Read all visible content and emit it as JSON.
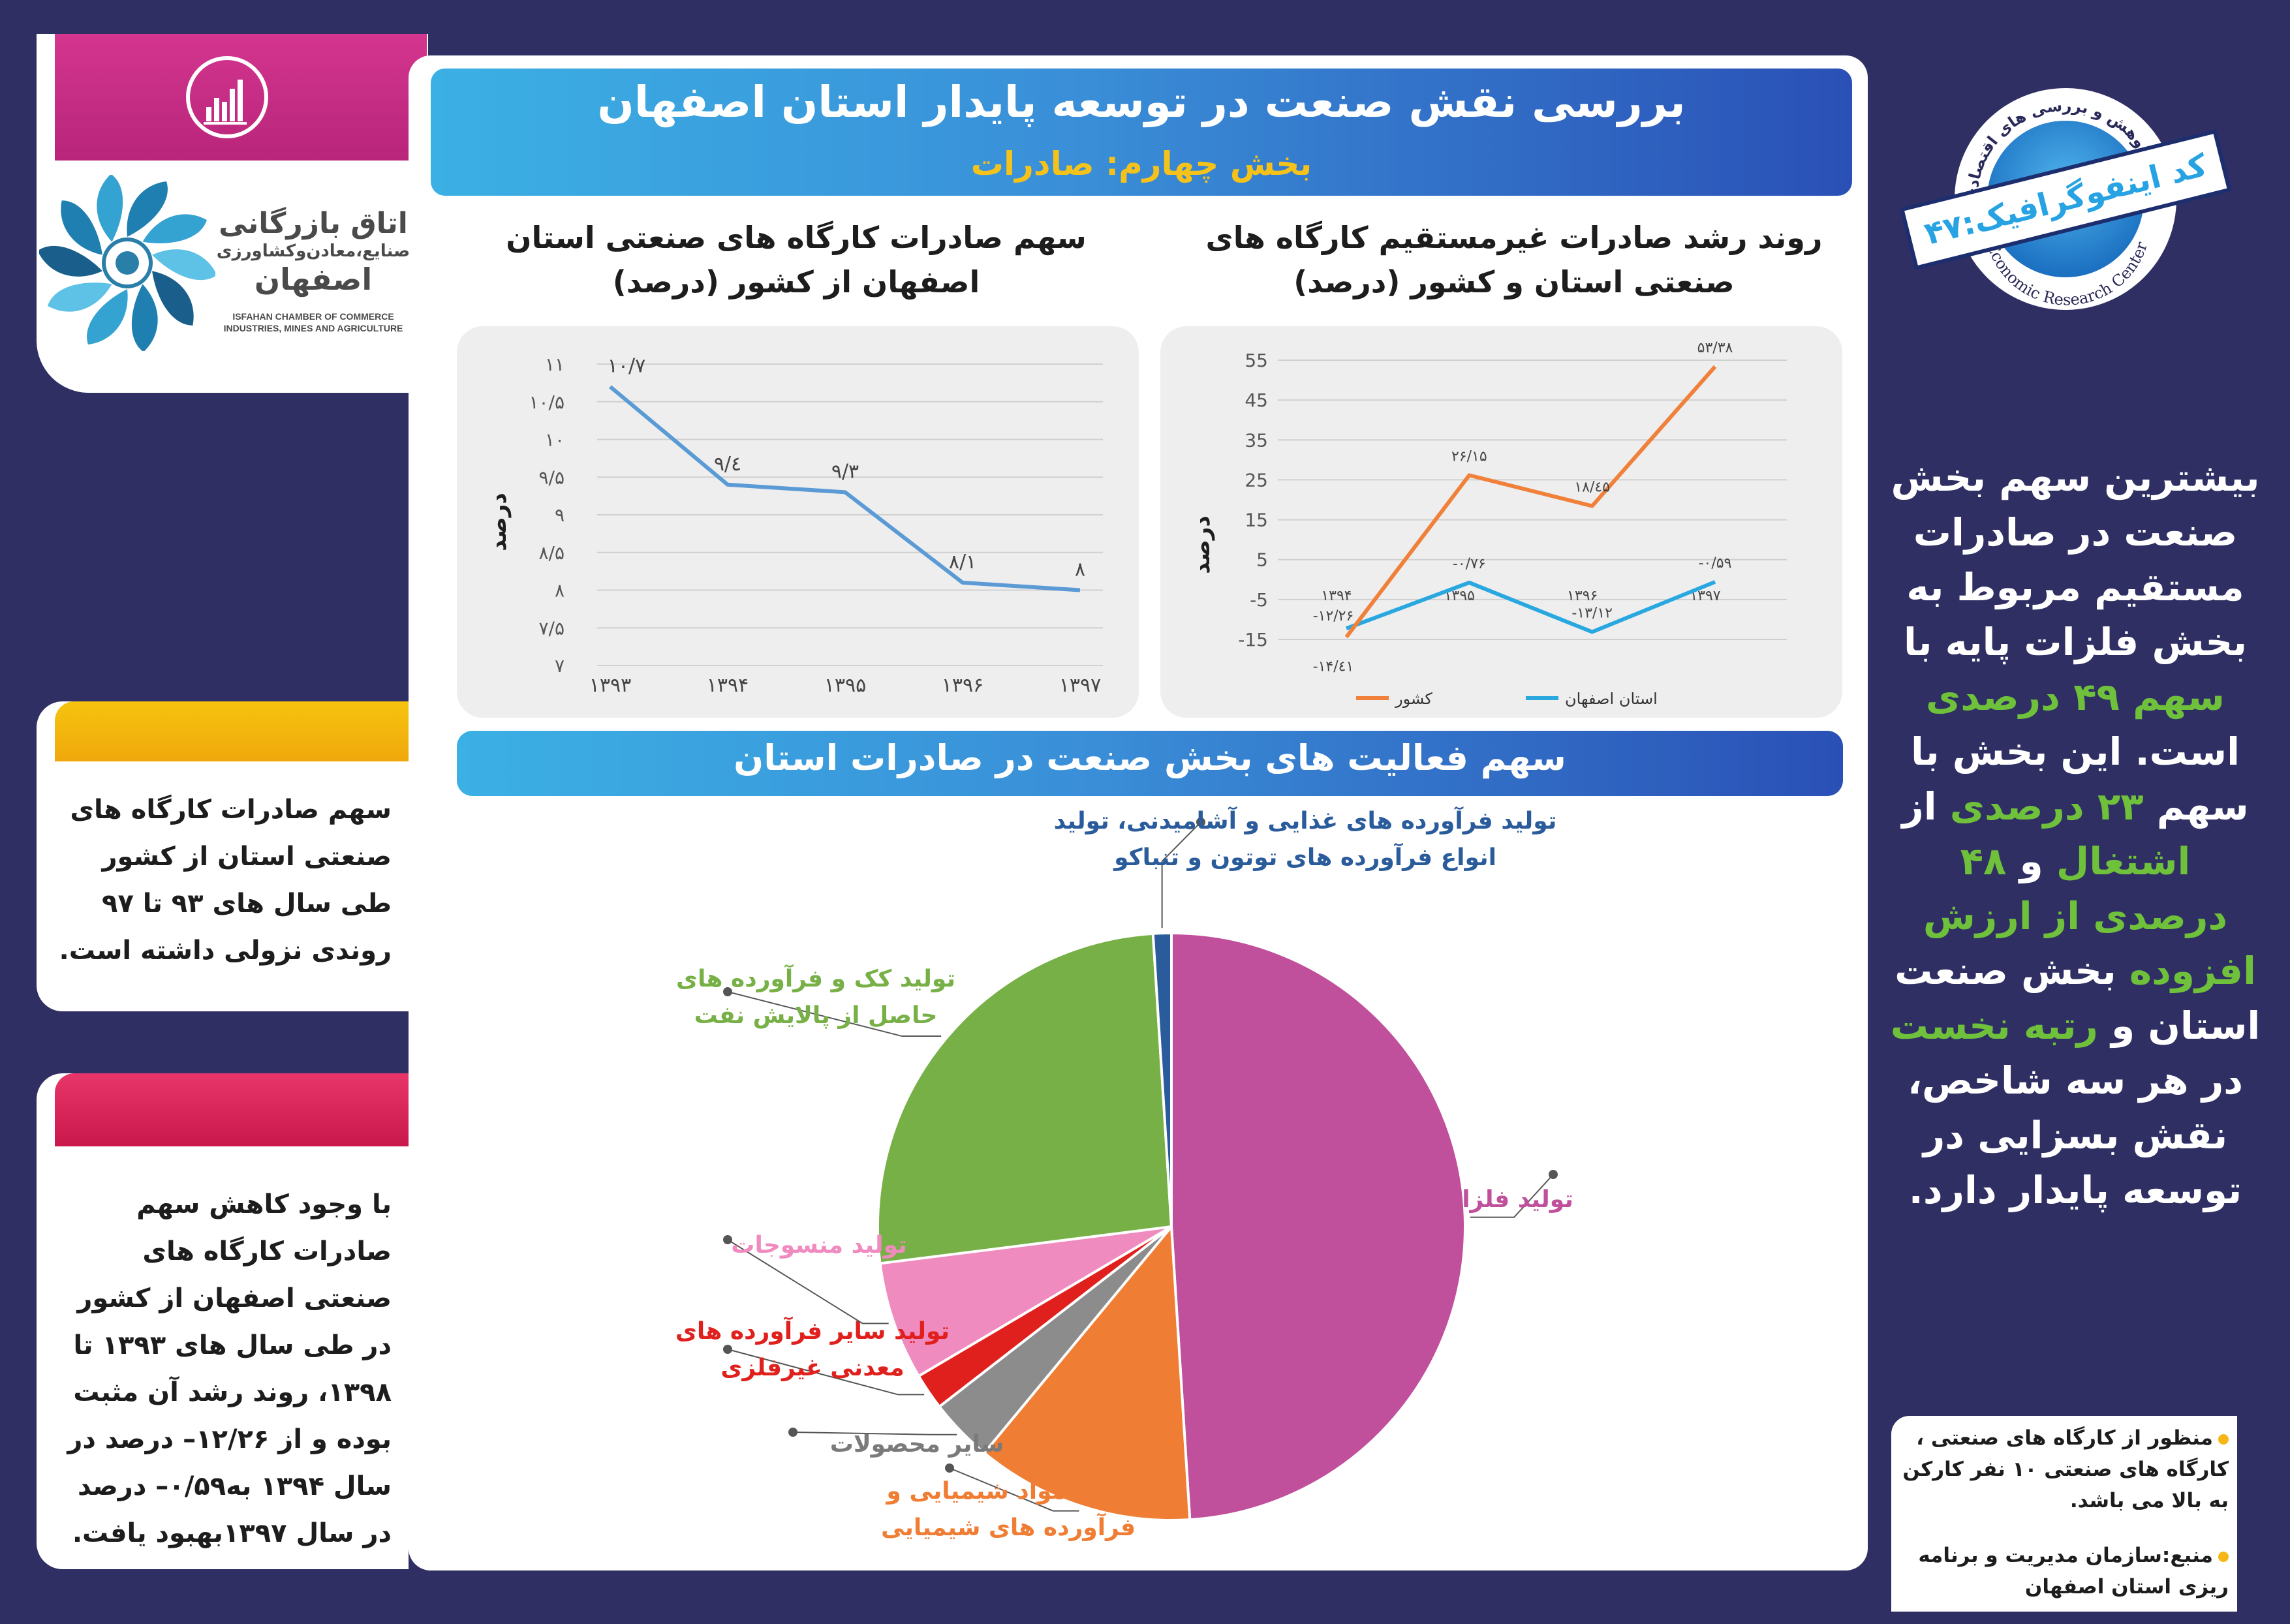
{
  "header": {
    "title": "بررسی نقش صنعت در توسعه پایدار استان اصفهان",
    "subtitle": "بخش چهارم: صادرات"
  },
  "logo": {
    "name_fa_1": "اتاق بازرگانی",
    "name_fa_2": "صنایع،معادن‌وکشاورزی",
    "name_fa_3": "اصفهان",
    "name_en_1": "ISFAHAN CHAMBER OF COMMERCE",
    "name_en_2": "INDUSTRIES, MINES AND AGRICULTURE"
  },
  "badge": {
    "top_text": "واحد پژوهش و بررسی های اقتصادی",
    "ribbon": "کد اینفوگرافیک:۴۷",
    "bottom_text": "Economic Research Center"
  },
  "notes": {
    "note1": "سهم صادرات کارگاه های صنعتی استان از کشور طی سال های ۹۳ تا ۹۷ روندی نزولی داشته است.",
    "note2": "با وجود کاهش سهم صادرات کارگاه های صنعتی اصفهان از کشور در طی سال های ۱۳۹۳ تا ۱۳۹۸، روند رشد آن مثبت بوده و از ۱۲/۲۶– درصد در سال ۱۳۹۴ به۰/۵۹– درصد در سال ۱۳۹۷بهبود یافت."
  },
  "summary": {
    "p1": "بیشترین سهم بخش صنعت در صادرات مستقیم مربوط به بخش فلزات پایه با",
    "h1": "سهم ۴۹ درصدی",
    "p2": "است. این بخش با سهم",
    "h2": "۲۳ درصدی",
    "p3": "از",
    "h3": "اشتغال",
    "p4": "و",
    "h4": "۴۸ درصدی از ارزش افزوده",
    "p5": "بخش صنعت استان و",
    "h5": "رتبه نخست",
    "p6": "در هر سه شاخص، نقش بسزایی در توسعه پایدار دارد."
  },
  "source": {
    "item1": "منظور از کارگاه های صنعتی ، کارگاه های صنعتی ۱۰ نفر کارکن به بالا می باشد.",
    "item2": "منبع:سازمان مدیریت و برنامه ریزی استان اصفهان"
  },
  "chart_data": [
    {
      "type": "line",
      "title": "سهم صادرات کارگاه های صنعتی استان اصفهان از کشور (درصد)",
      "ylabel": "درصد",
      "categories": [
        "۱۳۹۳",
        "۱۳۹۴",
        "۱۳۹۵",
        "۱۳۹۶",
        "۱۳۹۷"
      ],
      "values": [
        10.7,
        9.4,
        9.3,
        8.1,
        8.0
      ],
      "value_labels": [
        "۱۰/۷",
        "۹/٤",
        "۹/۳",
        "۸/۱",
        "۸"
      ],
      "ylim": [
        7,
        11
      ],
      "yticks": [
        11,
        10.5,
        10,
        9.5,
        9,
        8.5,
        8,
        7.5,
        7
      ],
      "ytick_labels": [
        "۱۱",
        "۱۰/۵",
        "۱۰",
        "۹/۵",
        "۹",
        "۸/۵",
        "۸",
        "۷/۵",
        "۷"
      ],
      "color": "#5b9bd5",
      "grid": true
    },
    {
      "type": "line",
      "title": "روند رشد صادرات غیرمستقیم کارگاه های صنعتی استان و کشور (درصد)",
      "ylabel": "درصد",
      "categories": [
        "۱۳۹۴",
        "۱۳۹۵",
        "۱۳۹۶",
        "۱۳۹۷"
      ],
      "series": [
        {
          "name": "استان اصفهان",
          "color": "#29a8e0",
          "values": [
            -12.26,
            -0.76,
            -13.12,
            -0.59
          ],
          "labels": [
            "-۱۲/۲۶",
            "-۰/۷۶",
            "-۱۳/۱۲",
            "-۰/۵۹"
          ]
        },
        {
          "name": "کشور",
          "color": "#f0803a",
          "values": [
            -14.41,
            26.15,
            18.45,
            53.38
          ],
          "labels": [
            "-۱۴/٤۱",
            "۲۶/۱۵",
            "۱۸/٤۵",
            "۵۳/۳۸"
          ]
        }
      ],
      "ylim": [
        -15,
        55
      ],
      "yticks": [
        55,
        45,
        35,
        25,
        15,
        5,
        -5,
        -15
      ],
      "ytick_labels": [
        "55",
        "45",
        "35",
        "25",
        "15",
        "5",
        "-5",
        "-15"
      ],
      "legend": "bottom",
      "grid": true
    },
    {
      "type": "pie",
      "title": "سهم فعالیت های بخش صنعت در صادرات استان",
      "slices": [
        {
          "label": "تولید فلزات پایه",
          "value": 49,
          "color": "#c04f9c"
        },
        {
          "label": "تولید مواد شیمیایی و فرآورده های شیمیایی",
          "value": 12,
          "color": "#ef7d33"
        },
        {
          "label": "سایر محصولات",
          "value": 3.5,
          "color": "#8c8c8c"
        },
        {
          "label": "تولید سایر فرآورده های معدنی غیرفلزی",
          "value": 2,
          "color": "#e0201c"
        },
        {
          "label": "تولید منسوجات",
          "value": 6.5,
          "color": "#f08bbf"
        },
        {
          "label": "تولید کک و فرآورده های حاصل از پالایش نفت",
          "value": 26,
          "color": "#77b046"
        },
        {
          "label": "تولید فرآورده های غذایی و آشامیدنی، تولید انواع فرآورده های توتون و تنباکو",
          "value": 1,
          "color": "#2a5b9b"
        }
      ]
    }
  ]
}
